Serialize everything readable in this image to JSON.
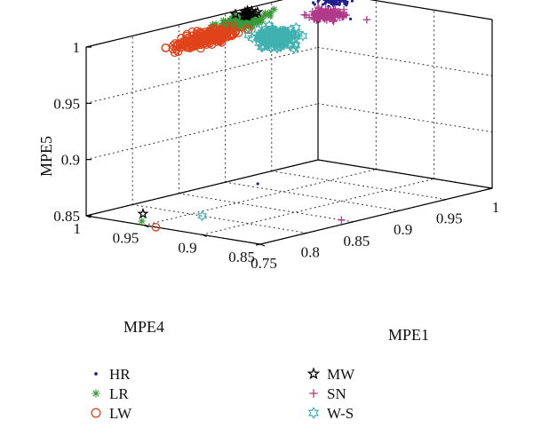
{
  "chart_data": {
    "type": "scatter",
    "projection": "3d",
    "title": "",
    "axes": {
      "x": {
        "label": "MPE1",
        "range": [
          0.75,
          1.0
        ],
        "ticks": [
          "0.75",
          "0.8",
          "0.85",
          "0.9",
          "0.95",
          "1"
        ]
      },
      "y": {
        "label": "MPE4",
        "range": [
          0.85,
          1.0
        ],
        "ticks": [
          "0.85",
          "0.9",
          "0.95",
          "1"
        ]
      },
      "z": {
        "label": "MPE5",
        "range": [
          0.85,
          1.0
        ],
        "ticks": [
          "0.85",
          "0.9",
          "0.95",
          "1"
        ]
      }
    },
    "grid": true,
    "legend_position": "bottom",
    "series": [
      {
        "name": "HR",
        "marker": "dot",
        "color": "#1f1f8f",
        "clusters": [
          {
            "x": [
              0.97,
              1.0
            ],
            "y": [
              0.96,
              0.99
            ],
            "z": [
              0.995,
              1.0
            ],
            "n": 60
          }
        ],
        "outliers": [
          {
            "x": 0.985,
            "y": 0.96,
            "z": 0.985
          },
          {
            "x": 0.91,
            "y": 0.98,
            "z": 0.85
          }
        ]
      },
      {
        "name": "LR",
        "marker": "asterisk",
        "color": "#3a9a3a",
        "clusters": [
          {
            "x": [
              0.87,
              0.95
            ],
            "y": [
              0.985,
              1.0
            ],
            "z": [
              0.983,
              1.0
            ],
            "n": 160
          }
        ],
        "outliers": [
          {
            "x": 0.76,
            "y": 0.96,
            "z": 0.85
          }
        ]
      },
      {
        "name": "LW",
        "marker": "circle",
        "color": "#e0431a",
        "clusters": [
          {
            "x": [
              0.82,
              0.92
            ],
            "y": [
              0.985,
              1.0
            ],
            "z": [
              0.975,
              0.995
            ],
            "n": 200
          }
        ],
        "outliers": [
          {
            "x": 0.75,
            "y": 0.94,
            "z": 0.85
          }
        ]
      },
      {
        "name": "MW",
        "marker": "pentagram",
        "color": "#000000",
        "clusters": [
          {
            "x": [
              0.9,
              0.94
            ],
            "y": [
              0.99,
              1.0
            ],
            "z": [
              0.995,
              1.0
            ],
            "n": 14
          }
        ],
        "outliers": [
          {
            "x": 0.78,
            "y": 0.975,
            "z": 0.85
          }
        ]
      },
      {
        "name": "SN",
        "marker": "plus",
        "color": "#b03a8a",
        "clusters": [
          {
            "x": [
              0.95,
              0.99
            ],
            "y": [
              0.955,
              0.985
            ],
            "z": [
              0.982,
              0.998
            ],
            "n": 110
          }
        ],
        "outliers": [
          {
            "x": 0.99,
            "y": 0.95,
            "z": 0.985
          },
          {
            "x": 0.85,
            "y": 0.86,
            "z": 0.85
          }
        ]
      },
      {
        "name": "W-S",
        "marker": "hexagram",
        "color": "#40b0b0",
        "clusters": [
          {
            "x": [
              0.9,
              0.94
            ],
            "y": [
              0.955,
              0.99
            ],
            "z": [
              0.968,
              0.99
            ],
            "n": 180
          }
        ],
        "outliers": [
          {
            "x": 0.8,
            "y": 0.94,
            "z": 0.85
          }
        ]
      }
    ]
  }
}
